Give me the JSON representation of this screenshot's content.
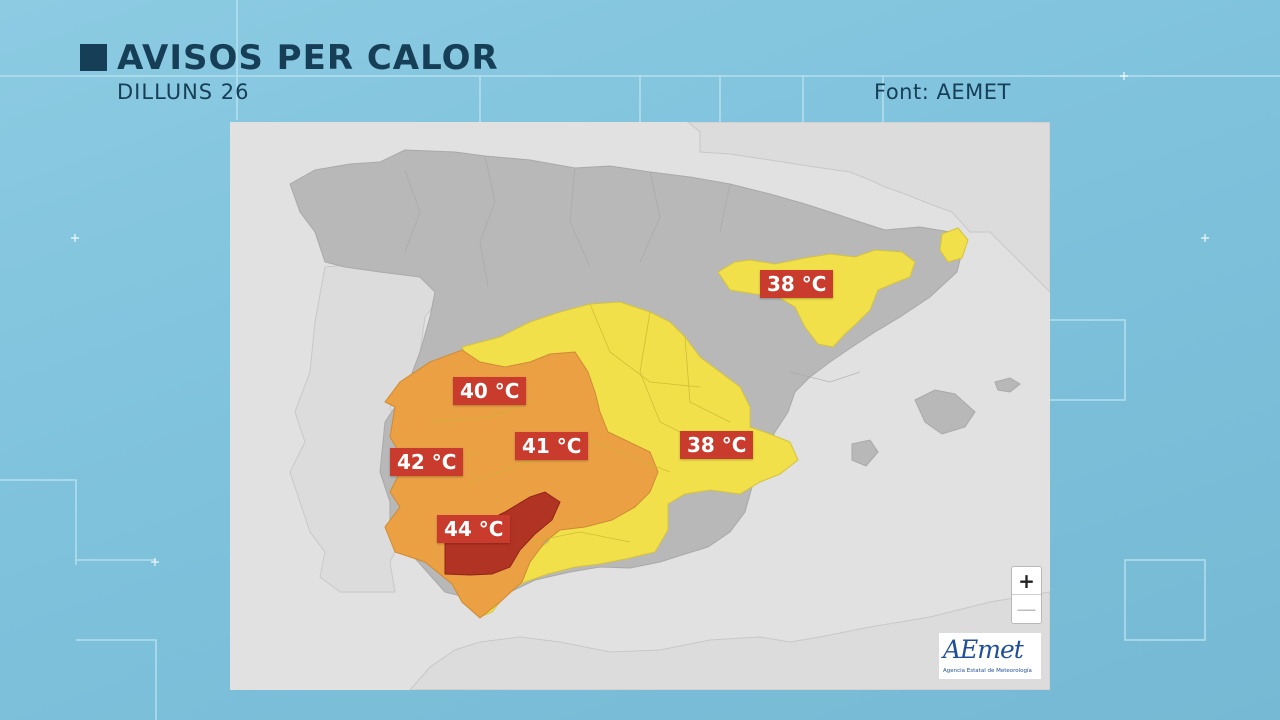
{
  "header": {
    "title": "AVISOS PER CALOR",
    "day": "DILLUNS 26",
    "source": "Font: AEMET"
  },
  "colors": {
    "background": "#82c4de",
    "title": "#173e57",
    "no_warning": "#b8b8b8",
    "yellow_warning": "#f1e04a",
    "orange_warning": "#eba044",
    "red_warning": "#b13324",
    "label_bg": "#c93b2c"
  },
  "map": {
    "labels": [
      {
        "region": "catalunya-aragon",
        "text": "38 °C"
      },
      {
        "region": "extremadura-north",
        "text": "40 °C"
      },
      {
        "region": "castilla-la-mancha-west",
        "text": "41 °C"
      },
      {
        "region": "valencia-castilla",
        "text": "38 °C"
      },
      {
        "region": "extremadura-south",
        "text": "42 °C"
      },
      {
        "region": "guadalquivir",
        "text": "44 °C"
      }
    ],
    "zoom": {
      "in": "+",
      "out": "—"
    }
  },
  "logo": {
    "icon": "aemet-logo",
    "text": "AEmet",
    "tagline": "Agencia Estatal de Meteorología"
  }
}
